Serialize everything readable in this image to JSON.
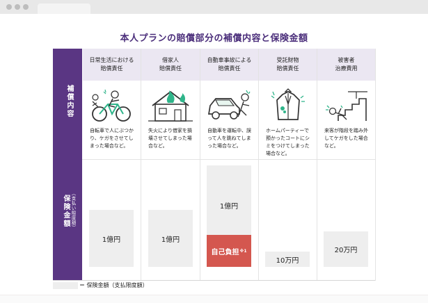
{
  "title": "本人プランの賠償部分の補償内容と保険金額",
  "side_labels": {
    "coverage": "補償内容",
    "amount": "保険金額",
    "amount_sub": "（支払い限度額）"
  },
  "columns": [
    {
      "header_line1": "日常生活における",
      "header_line2": "賠償責任",
      "icon": "bicycle-accident-icon",
      "desc": [
        "自転車で人にぶつか",
        "り、ケガをさせてし",
        "まった場合など。"
      ],
      "amount": "1億円",
      "level": 0.48
    },
    {
      "header_line1": "借家人",
      "header_line2": "賠償責任",
      "icon": "house-fire-icon",
      "desc": [
        "失火により借家を損",
        "壊させてしまった場",
        "合など。"
      ],
      "amount": "1億円",
      "level": 0.48
    },
    {
      "header_line1": "自動車事故による",
      "header_line2": "賠償責任",
      "icon": "car-accident-icon",
      "desc": [
        "自動車を運転中、誤",
        "って人を跳ねてしま",
        "った場合など。"
      ],
      "amount": "1億円",
      "level": 0.86,
      "deductible": "自己負担",
      "deductible_note": "※1"
    },
    {
      "header_line1": "受託財物",
      "header_line2": "賠償責任",
      "icon": "coat-stain-icon",
      "desc": [
        "ホームパーティーで",
        "預かったコートにシ",
        "ミをつけてしまった",
        "場合など。"
      ],
      "amount": "10万円",
      "level": 0.13
    },
    {
      "header_line1": "被害者",
      "header_line2": "治療費用",
      "icon": "stairs-fall-icon",
      "desc": [
        "来客が階段を踏み外",
        "してケガをした場合",
        "など。"
      ],
      "amount": "20万円",
      "level": 0.3
    }
  ],
  "legend": "＝ 保険金額（支払限度額）",
  "colors": {
    "purple": "#5a3683",
    "title": "#4a2d7a",
    "header_bg": "#ebe7f2",
    "amount_bar": "#eeeeee",
    "deductible": "#d4574f",
    "icon_green": "#2fb58a"
  }
}
